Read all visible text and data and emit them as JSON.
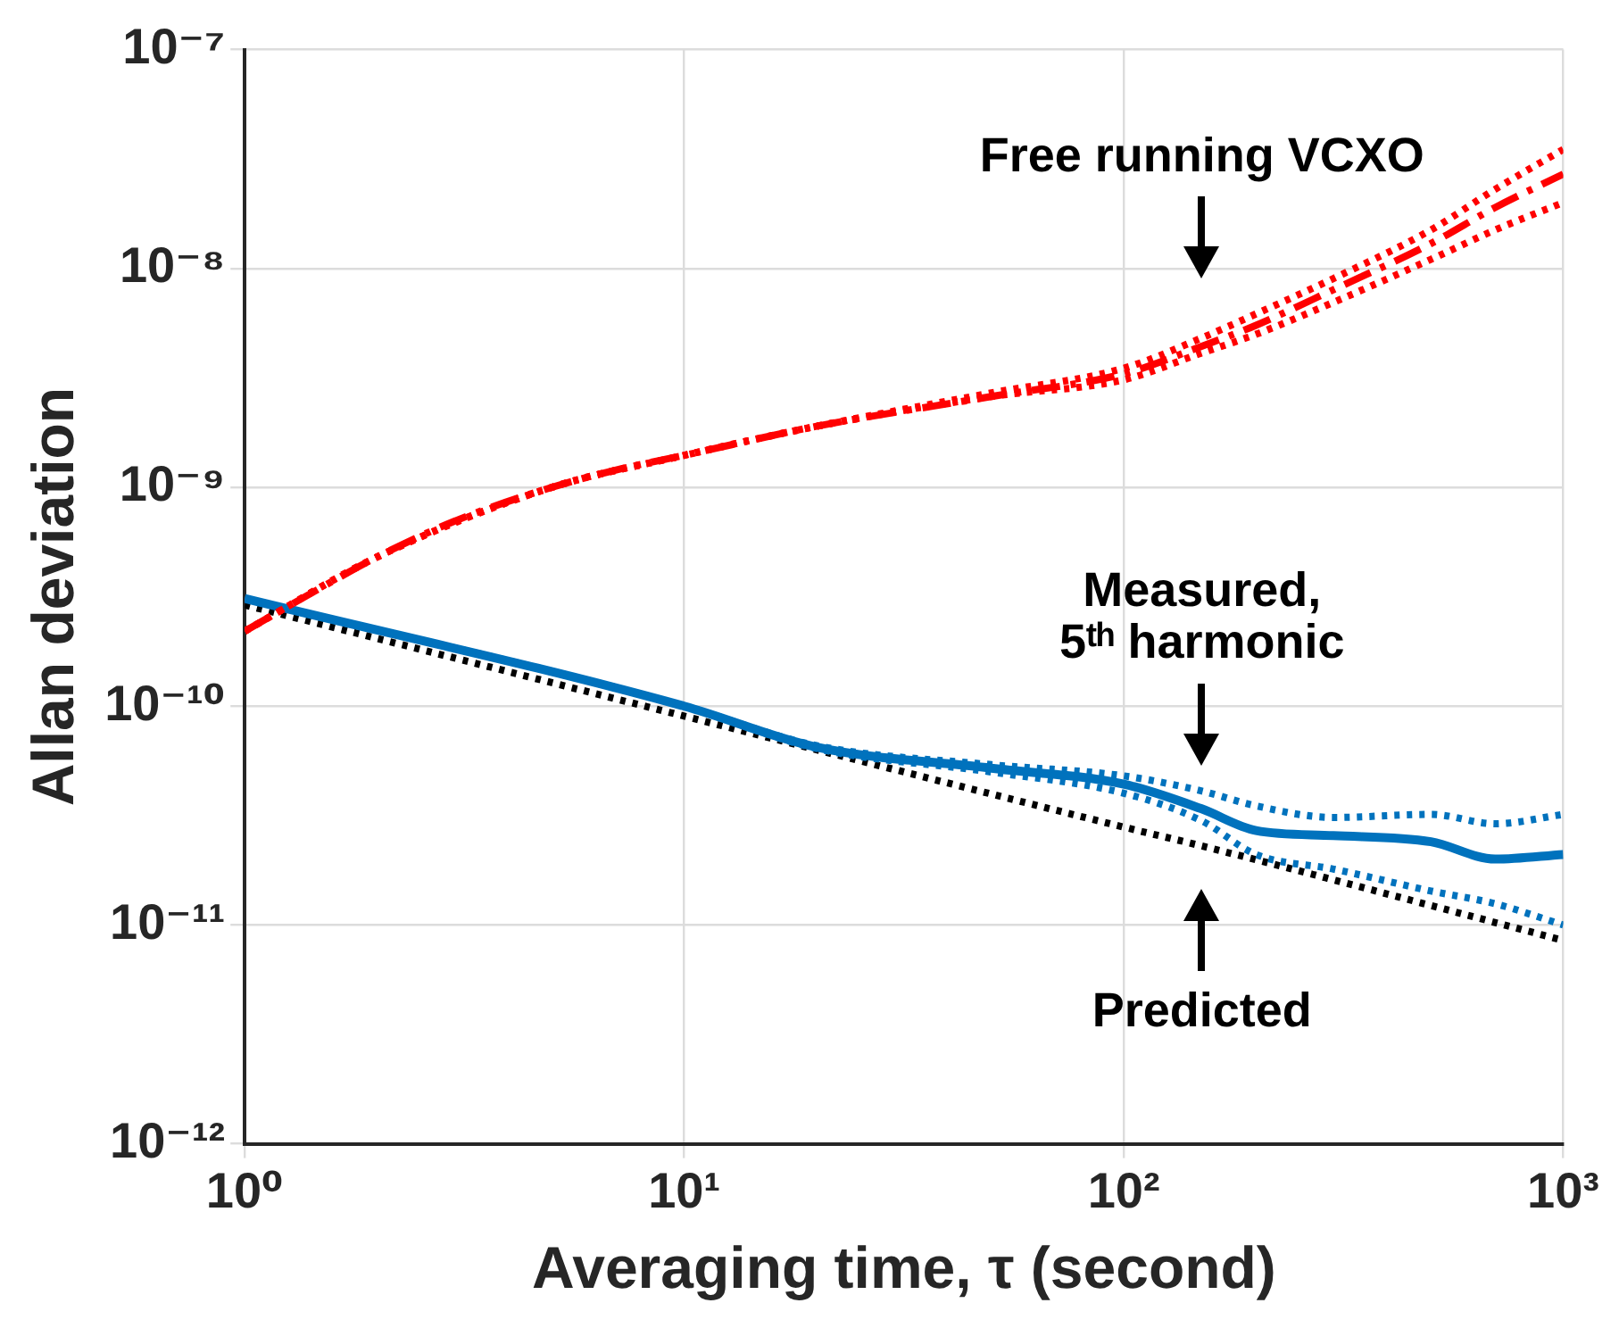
{
  "chart_data": {
    "type": "line",
    "xlabel": "Averaging time, τ (second)",
    "ylabel": "Allan deviation",
    "log": "xy",
    "grid": true,
    "marker": "none",
    "xlim": [
      1,
      1000
    ],
    "xticks": [
      {
        "value": 1,
        "label": "10⁰"
      },
      {
        "value": 10,
        "label": "10¹"
      },
      {
        "value": 100,
        "label": "10²"
      },
      {
        "value": 1000,
        "label": "10³"
      }
    ],
    "ylim": [
      1e-12,
      1e-07
    ],
    "yticks": [
      {
        "value": 1e-12,
        "label": "10⁻¹²"
      },
      {
        "value": 1e-11,
        "label": "10⁻¹¹"
      },
      {
        "value": 1e-10,
        "label": "10⁻¹⁰"
      },
      {
        "value": 1e-09,
        "label": "10⁻⁹"
      },
      {
        "value": 1e-08,
        "label": "10⁻⁸"
      },
      {
        "value": 1e-07,
        "label": "10⁻⁷"
      }
    ],
    "series": [
      {
        "color": "#ff0000",
        "line_style": "dotted",
        "x": [
          1,
          2,
          5,
          10,
          20,
          50,
          100,
          150,
          200,
          300,
          500,
          700,
          1000
        ],
        "values": [
          2.2e-10,
          4.8e-10,
          1e-09,
          1.4e-09,
          1.9e-09,
          2.7e-09,
          3.5e-09,
          4.8e-09,
          6.2e-09,
          9e-09,
          1.5e-08,
          2.3e-08,
          3.5e-08
        ]
      },
      {
        "color": "#ff0000",
        "line_style": "dotted",
        "x": [
          1,
          2,
          5,
          10,
          20,
          50,
          100,
          150,
          200,
          300,
          500,
          700,
          1000
        ],
        "values": [
          2.2e-10,
          4.8e-10,
          1e-09,
          1.4e-09,
          1.9e-09,
          2.6e-09,
          3.1e-09,
          4.1e-09,
          5e-09,
          7e-09,
          1.1e-08,
          1.5e-08,
          2e-08
        ]
      },
      {
        "color": "#ff0000",
        "line_style": "dashed",
        "x": [
          1,
          1.5,
          2,
          3,
          5,
          7,
          10,
          20,
          50,
          100,
          150,
          200,
          300,
          500,
          700,
          1000
        ],
        "values": [
          2.2e-10,
          3.5e-10,
          4.8e-10,
          7e-10,
          1e-09,
          1.2e-09,
          1.4e-09,
          1.9e-09,
          2.6e-09,
          3.3e-09,
          4.4e-09,
          5.5e-09,
          8e-09,
          1.3e-08,
          1.9e-08,
          2.7e-08
        ]
      },
      {
        "color": "#0072bd",
        "line_style": "dotted",
        "x": [
          1,
          10,
          20,
          50,
          100,
          150,
          200,
          300,
          500,
          700,
          1000
        ],
        "values": [
          3.1e-10,
          1e-10,
          6.6e-11,
          5.4e-11,
          4.8e-11,
          4.1e-11,
          3.5e-11,
          3.1e-11,
          3.2e-11,
          2.9e-11,
          3.2e-11
        ]
      },
      {
        "color": "#0072bd",
        "line_style": "dotted",
        "x": [
          1,
          10,
          20,
          50,
          100,
          150,
          200,
          300,
          500,
          700,
          1000
        ],
        "values": [
          3.1e-10,
          1e-10,
          6.4e-11,
          5e-11,
          4e-11,
          3e-11,
          2.1e-11,
          1.8e-11,
          1.43e-11,
          1.25e-11,
          1e-11
        ]
      },
      {
        "color": "#0072bd",
        "line_style": "solid",
        "x": [
          1,
          10,
          20,
          50,
          100,
          150,
          200,
          300,
          500,
          700,
          1000
        ],
        "values": [
          3.1e-10,
          1e-10,
          6.5e-11,
          5.2e-11,
          4.4e-11,
          3.4e-11,
          2.7e-11,
          2.56e-11,
          2.4e-11,
          2e-11,
          2.1e-11
        ]
      },
      {
        "color": "#000000",
        "line_style": "dotted",
        "x": [
          1,
          10,
          100,
          150,
          1000
        ],
        "values": [
          2.9e-10,
          9e-11,
          2.8e-11,
          2.3e-11,
          8.5e-12
        ]
      }
    ],
    "annotations": [
      "Free running VCXO",
      "Measured,\n5ᵗʰ harmonic",
      "Predicted"
    ]
  }
}
